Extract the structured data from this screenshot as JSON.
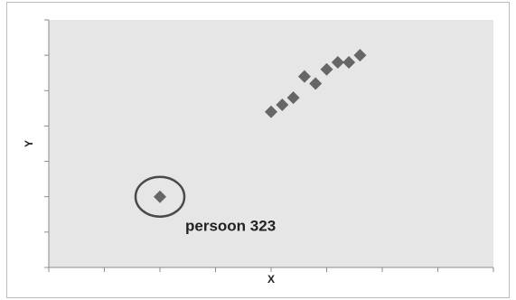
{
  "chart_data": {
    "type": "scatter",
    "title": "",
    "xlabel": "X",
    "ylabel": "Y",
    "xlim": [
      0,
      8
    ],
    "ylim": [
      0,
      7
    ],
    "grid": false,
    "legend": "none",
    "marker": "diamond",
    "points": [
      {
        "x": 4.0,
        "y": 4.4
      },
      {
        "x": 4.2,
        "y": 4.6
      },
      {
        "x": 4.4,
        "y": 4.8
      },
      {
        "x": 4.6,
        "y": 5.4
      },
      {
        "x": 4.8,
        "y": 5.2
      },
      {
        "x": 5.0,
        "y": 5.6
      },
      {
        "x": 5.2,
        "y": 5.8
      },
      {
        "x": 5.4,
        "y": 5.8
      },
      {
        "x": 5.6,
        "y": 6.0
      },
      {
        "x": 2.0,
        "y": 2.0
      }
    ],
    "annotation": {
      "text": "persoon 323",
      "point_index": 9
    },
    "colors": {
      "plot_background": "#e6e6e6",
      "marker": "#666666",
      "axis": "#8c8c8c",
      "highlight_ring": "#4a4a4a",
      "label": "#222222"
    }
  }
}
